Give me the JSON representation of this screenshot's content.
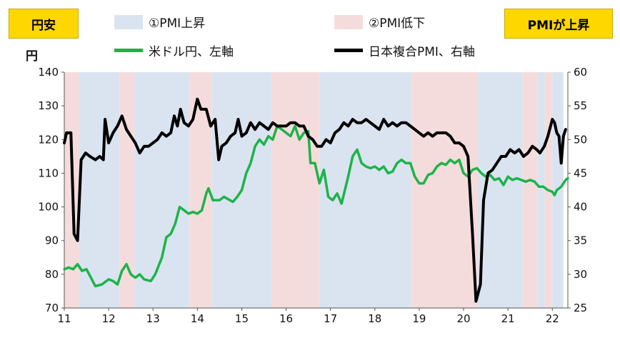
{
  "badges": {
    "left": "円安",
    "right": "PMIが上昇"
  },
  "legend": {
    "band1": "①PMI上昇",
    "band2": "②PMI低下",
    "series_usdjpy": "米ドル円、左軸",
    "series_pmi": "日本複合PMI、右軸"
  },
  "units": {
    "left": "円"
  },
  "colors": {
    "band_up": "#dae4f0",
    "band_down": "#f5dcdc",
    "usdjpy": "#1db34a",
    "pmi": "#000000",
    "badge": "#ffd700"
  },
  "chart_data": {
    "type": "line",
    "title": "",
    "x_axis": {
      "range": [
        2011.0,
        2022.35
      ],
      "ticks": [
        2011,
        2012,
        2013,
        2014,
        2015,
        2016,
        2017,
        2018,
        2019,
        2020,
        2021,
        2022
      ],
      "tick_labels": [
        "11",
        "12",
        "13",
        "14",
        "15",
        "16",
        "17",
        "18",
        "19",
        "20",
        "21",
        "22"
      ]
    },
    "y_left": {
      "range": [
        70,
        140
      ],
      "ticks": [
        70,
        80,
        90,
        100,
        110,
        120,
        130,
        140
      ]
    },
    "y_right": {
      "range": [
        25,
        60
      ],
      "ticks": [
        25,
        30,
        35,
        40,
        45,
        50,
        55,
        60
      ]
    },
    "bands": [
      {
        "type": "down",
        "from": 2011.0,
        "to": 2011.33
      },
      {
        "type": "up",
        "from": 2011.33,
        "to": 2012.25
      },
      {
        "type": "down",
        "from": 2012.25,
        "to": 2012.58
      },
      {
        "type": "up",
        "from": 2012.58,
        "to": 2013.83
      },
      {
        "type": "down",
        "from": 2013.83,
        "to": 2014.33
      },
      {
        "type": "up",
        "from": 2014.33,
        "to": 2015.67
      },
      {
        "type": "down",
        "from": 2015.67,
        "to": 2016.75
      },
      {
        "type": "up",
        "from": 2016.75,
        "to": 2018.83
      },
      {
        "type": "down",
        "from": 2018.83,
        "to": 2020.33
      },
      {
        "type": "up",
        "from": 2020.33,
        "to": 2021.33
      },
      {
        "type": "down",
        "from": 2021.33,
        "to": 2021.67
      },
      {
        "type": "up",
        "from": 2021.67,
        "to": 2021.83
      },
      {
        "type": "down",
        "from": 2021.83,
        "to": 2022.0
      },
      {
        "type": "up",
        "from": 2022.0,
        "to": 2022.25
      }
    ],
    "series": [
      {
        "name": "米ドル円、左軸",
        "axis": "left",
        "points": [
          [
            2011.0,
            81.5
          ],
          [
            2011.1,
            82
          ],
          [
            2011.2,
            81.5
          ],
          [
            2011.3,
            83
          ],
          [
            2011.4,
            81
          ],
          [
            2011.5,
            81.5
          ],
          [
            2011.6,
            79
          ],
          [
            2011.7,
            76.5
          ],
          [
            2011.85,
            77
          ],
          [
            2012.0,
            78.5
          ],
          [
            2012.1,
            78
          ],
          [
            2012.2,
            77
          ],
          [
            2012.3,
            81
          ],
          [
            2012.4,
            83
          ],
          [
            2012.5,
            80
          ],
          [
            2012.6,
            79
          ],
          [
            2012.7,
            80
          ],
          [
            2012.8,
            78.5
          ],
          [
            2012.95,
            78
          ],
          [
            2013.05,
            80
          ],
          [
            2013.2,
            85
          ],
          [
            2013.3,
            91
          ],
          [
            2013.4,
            92
          ],
          [
            2013.5,
            95
          ],
          [
            2013.6,
            100
          ],
          [
            2013.7,
            99
          ],
          [
            2013.8,
            98
          ],
          [
            2013.9,
            98.5
          ],
          [
            2014.0,
            98
          ],
          [
            2014.1,
            99
          ],
          [
            2014.2,
            104
          ],
          [
            2014.25,
            105.5
          ],
          [
            2014.35,
            102
          ],
          [
            2014.5,
            102
          ],
          [
            2014.6,
            103
          ],
          [
            2014.8,
            101.5
          ],
          [
            2014.9,
            103
          ],
          [
            2015.0,
            105
          ],
          [
            2015.1,
            110
          ],
          [
            2015.2,
            113
          ],
          [
            2015.3,
            118
          ],
          [
            2015.4,
            120
          ],
          [
            2015.5,
            118.5
          ],
          [
            2015.6,
            121
          ],
          [
            2015.7,
            120
          ],
          [
            2015.8,
            124
          ],
          [
            2015.9,
            123
          ],
          [
            2016.0,
            122
          ],
          [
            2016.1,
            121
          ],
          [
            2016.2,
            124
          ],
          [
            2016.3,
            120
          ],
          [
            2016.4,
            122
          ],
          [
            2016.5,
            122.5
          ],
          [
            2016.55,
            113
          ],
          [
            2016.65,
            113
          ],
          [
            2016.75,
            107
          ],
          [
            2016.85,
            111
          ],
          [
            2016.95,
            103
          ],
          [
            2017.05,
            102
          ],
          [
            2017.15,
            104
          ],
          [
            2017.25,
            101
          ],
          [
            2017.4,
            109
          ],
          [
            2017.5,
            115
          ],
          [
            2017.6,
            117
          ],
          [
            2017.7,
            113
          ],
          [
            2017.8,
            112
          ],
          [
            2017.9,
            111.5
          ],
          [
            2018.0,
            112
          ],
          [
            2018.1,
            111
          ],
          [
            2018.2,
            112
          ],
          [
            2018.3,
            110
          ],
          [
            2018.4,
            110.5
          ],
          [
            2018.5,
            113
          ],
          [
            2018.6,
            114
          ],
          [
            2018.7,
            113
          ],
          [
            2018.8,
            113
          ],
          [
            2018.9,
            109
          ],
          [
            2019.0,
            107
          ],
          [
            2019.1,
            107
          ],
          [
            2019.2,
            109.5
          ],
          [
            2019.3,
            110
          ],
          [
            2019.4,
            112
          ],
          [
            2019.5,
            113
          ],
          [
            2019.6,
            112.5
          ],
          [
            2019.7,
            114
          ],
          [
            2019.8,
            113
          ],
          [
            2019.9,
            114
          ],
          [
            2020.0,
            110
          ],
          [
            2020.1,
            109
          ],
          [
            2020.2,
            111
          ],
          [
            2020.3,
            111.5
          ],
          [
            2020.4,
            110
          ],
          [
            2020.5,
            109
          ],
          [
            2020.6,
            109.5
          ],
          [
            2020.7,
            108
          ],
          [
            2020.8,
            108.5
          ],
          [
            2020.9,
            106.5
          ],
          [
            2021.0,
            109
          ],
          [
            2021.1,
            108
          ],
          [
            2021.2,
            108.5
          ],
          [
            2021.3,
            108
          ],
          [
            2021.4,
            107.5
          ],
          [
            2021.5,
            108
          ],
          [
            2021.6,
            107.5
          ],
          [
            2021.7,
            106
          ],
          [
            2021.8,
            106
          ],
          [
            2021.9,
            105
          ],
          [
            2022.0,
            104.5
          ],
          [
            2022.05,
            103.5
          ],
          [
            2022.1,
            105
          ],
          [
            2022.2,
            106
          ],
          [
            2022.25,
            107
          ],
          [
            2022.3,
            108
          ],
          [
            2022.35,
            108.5
          ]
        ]
      },
      {
        "name": "日本複合PMI、右軸",
        "axis": "right",
        "points": [
          [
            2011.0,
            49.5
          ],
          [
            2011.05,
            51
          ],
          [
            2011.15,
            51
          ],
          [
            2011.22,
            36
          ],
          [
            2011.3,
            35
          ],
          [
            2011.38,
            47
          ],
          [
            2011.48,
            48
          ],
          [
            2011.58,
            47.5
          ],
          [
            2011.7,
            47
          ],
          [
            2011.8,
            47.5
          ],
          [
            2011.88,
            47
          ],
          [
            2011.92,
            53
          ],
          [
            2012.0,
            49.5
          ],
          [
            2012.1,
            51
          ],
          [
            2012.2,
            52
          ],
          [
            2012.3,
            53.5
          ],
          [
            2012.4,
            51.5
          ],
          [
            2012.5,
            50.5
          ],
          [
            2012.6,
            49.5
          ],
          [
            2012.7,
            48
          ],
          [
            2012.8,
            49
          ],
          [
            2012.9,
            49
          ],
          [
            2013.0,
            49.5
          ],
          [
            2013.1,
            50
          ],
          [
            2013.2,
            51
          ],
          [
            2013.3,
            50.5
          ],
          [
            2013.4,
            51
          ],
          [
            2013.48,
            53.5
          ],
          [
            2013.55,
            52
          ],
          [
            2013.62,
            54.5
          ],
          [
            2013.7,
            52.5
          ],
          [
            2013.8,
            52
          ],
          [
            2013.9,
            53
          ],
          [
            2014.0,
            56
          ],
          [
            2014.08,
            54.5
          ],
          [
            2014.2,
            54.5
          ],
          [
            2014.3,
            52
          ],
          [
            2014.4,
            53
          ],
          [
            2014.48,
            47
          ],
          [
            2014.55,
            49
          ],
          [
            2014.65,
            49.5
          ],
          [
            2014.75,
            50.5
          ],
          [
            2014.85,
            51
          ],
          [
            2014.92,
            53
          ],
          [
            2015.0,
            50.5
          ],
          [
            2015.1,
            51
          ],
          [
            2015.2,
            52.5
          ],
          [
            2015.3,
            51.5
          ],
          [
            2015.4,
            52.5
          ],
          [
            2015.5,
            52
          ],
          [
            2015.6,
            51.5
          ],
          [
            2015.7,
            52.5
          ],
          [
            2015.8,
            52
          ],
          [
            2015.9,
            52
          ],
          [
            2016.0,
            52
          ],
          [
            2016.1,
            52.5
          ],
          [
            2016.2,
            52.5
          ],
          [
            2016.3,
            52
          ],
          [
            2016.4,
            52
          ],
          [
            2016.5,
            50.5
          ],
          [
            2016.6,
            50
          ],
          [
            2016.7,
            49
          ],
          [
            2016.8,
            49
          ],
          [
            2016.9,
            50
          ],
          [
            2017.0,
            49.5
          ],
          [
            2017.1,
            51
          ],
          [
            2017.2,
            51.5
          ],
          [
            2017.3,
            52.5
          ],
          [
            2017.4,
            52
          ],
          [
            2017.5,
            53
          ],
          [
            2017.6,
            52.5
          ],
          [
            2017.7,
            52.5
          ],
          [
            2017.8,
            53
          ],
          [
            2017.9,
            52.5
          ],
          [
            2018.0,
            52
          ],
          [
            2018.1,
            51.5
          ],
          [
            2018.2,
            53
          ],
          [
            2018.3,
            52
          ],
          [
            2018.4,
            52.5
          ],
          [
            2018.5,
            52
          ],
          [
            2018.6,
            52.5
          ],
          [
            2018.7,
            52.5
          ],
          [
            2018.8,
            52
          ],
          [
            2018.9,
            51.5
          ],
          [
            2019.0,
            51
          ],
          [
            2019.1,
            50.5
          ],
          [
            2019.2,
            51
          ],
          [
            2019.3,
            50.5
          ],
          [
            2019.4,
            51
          ],
          [
            2019.5,
            51
          ],
          [
            2019.6,
            51
          ],
          [
            2019.7,
            50.5
          ],
          [
            2019.8,
            49.5
          ],
          [
            2019.9,
            49.5
          ],
          [
            2020.0,
            49
          ],
          [
            2020.1,
            47.5
          ],
          [
            2020.2,
            36
          ],
          [
            2020.28,
            26
          ],
          [
            2020.38,
            28.5
          ],
          [
            2020.45,
            41
          ],
          [
            2020.55,
            45
          ],
          [
            2020.65,
            45.5
          ],
          [
            2020.75,
            46.5
          ],
          [
            2020.85,
            47.5
          ],
          [
            2020.95,
            47.5
          ],
          [
            2021.05,
            48.5
          ],
          [
            2021.15,
            48
          ],
          [
            2021.25,
            48.5
          ],
          [
            2021.35,
            47.5
          ],
          [
            2021.45,
            48
          ],
          [
            2021.55,
            49
          ],
          [
            2021.65,
            48.5
          ],
          [
            2021.72,
            48
          ],
          [
            2021.82,
            49
          ],
          [
            2021.9,
            50.5
          ],
          [
            2022.0,
            53
          ],
          [
            2022.05,
            52.5
          ],
          [
            2022.1,
            51
          ],
          [
            2022.15,
            50.5
          ],
          [
            2022.2,
            46.5
          ],
          [
            2022.25,
            50.5
          ],
          [
            2022.3,
            51.5
          ]
        ]
      }
    ]
  }
}
